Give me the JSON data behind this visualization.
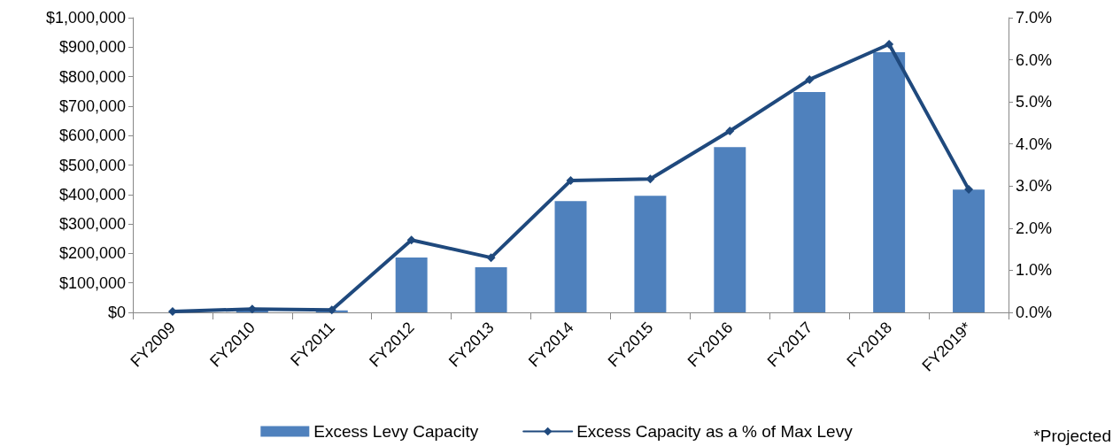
{
  "chart_data": {
    "type": "bar",
    "categories": [
      "FY2009",
      "FY2010",
      "FY2011",
      "FY2012",
      "FY2013",
      "FY2014",
      "FY2015",
      "FY2016",
      "FY2017",
      "FY2018",
      "FY2019*"
    ],
    "series": [
      {
        "name": "Excess Levy Capacity",
        "color": "#4f81bd",
        "values": [
          null,
          7000,
          7000,
          186000,
          153000,
          378000,
          396000,
          561000,
          748000,
          883000,
          417000
        ]
      },
      {
        "name": "Excess Capacity as a % of Max Levy",
        "type": "line",
        "axis": "y2",
        "color": "#1f497d",
        "marker": "diamond",
        "values": [
          0.02,
          0.08,
          0.06,
          1.72,
          1.3,
          3.13,
          3.17,
          4.31,
          5.53,
          6.37,
          2.92
        ]
      }
    ],
    "ylim": [
      0,
      1000000
    ],
    "yticks": [
      {
        "value": 0,
        "label": "$0"
      },
      {
        "value": 100000,
        "label": "$100,000"
      },
      {
        "value": 200000,
        "label": "$200,000"
      },
      {
        "value": 300000,
        "label": "$300,000"
      },
      {
        "value": 400000,
        "label": "$400,000"
      },
      {
        "value": 500000,
        "label": "$500,000"
      },
      {
        "value": 600000,
        "label": "$600,000"
      },
      {
        "value": 700000,
        "label": "$700,000"
      },
      {
        "value": 800000,
        "label": "$800,000"
      },
      {
        "value": 900000,
        "label": "$900,000"
      },
      {
        "value": 1000000,
        "label": "$1,000,000"
      }
    ],
    "y2lim": [
      0,
      7
    ],
    "y2ticks": [
      {
        "value": 0,
        "label": "0.0%"
      },
      {
        "value": 1,
        "label": "1.0%"
      },
      {
        "value": 2,
        "label": "2.0%"
      },
      {
        "value": 3,
        "label": "3.0%"
      },
      {
        "value": 4,
        "label": "4.0%"
      },
      {
        "value": 5,
        "label": "5.0%"
      },
      {
        "value": 6,
        "label": "6.0%"
      },
      {
        "value": 7,
        "label": "7.0%"
      }
    ],
    "annotations": [
      "*Projected"
    ],
    "legend": "bottom",
    "grid": false
  }
}
